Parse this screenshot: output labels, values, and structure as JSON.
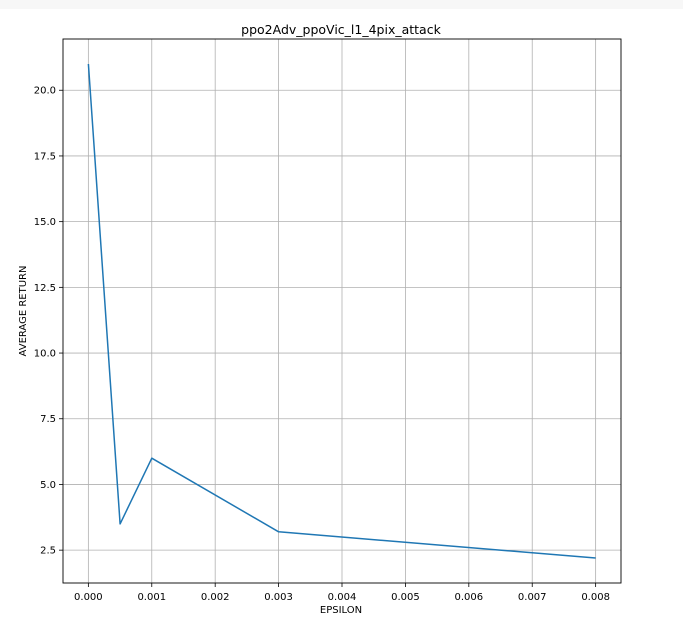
{
  "chart_data": {
    "type": "line",
    "title": "ppo2Adv_ppoVic_l1_4pix_attack",
    "xlabel": "EPSILON",
    "ylabel": "AVERAGE RETURN",
    "grid": true,
    "xlim": [
      -0.0004,
      0.0084
    ],
    "ylim": [
      1.25,
      21.95
    ],
    "xticks": [
      0.0,
      0.001,
      0.002,
      0.003,
      0.004,
      0.005,
      0.006,
      0.007,
      0.008
    ],
    "xtick_labels": [
      "0.000",
      "0.001",
      "0.002",
      "0.003",
      "0.004",
      "0.005",
      "0.006",
      "0.007",
      "0.008"
    ],
    "yticks": [
      2.5,
      5.0,
      7.5,
      10.0,
      12.5,
      15.0,
      17.5,
      20.0
    ],
    "ytick_labels": [
      "2.5",
      "5.0",
      "7.5",
      "10.0",
      "12.5",
      "15.0",
      "17.5",
      "20.0"
    ],
    "series": [
      {
        "color": "#1f77b4",
        "x": [
          0.0,
          0.0005,
          0.001,
          0.003,
          0.008
        ],
        "y": [
          21.0,
          3.5,
          6.0,
          3.2,
          2.2
        ]
      }
    ]
  }
}
